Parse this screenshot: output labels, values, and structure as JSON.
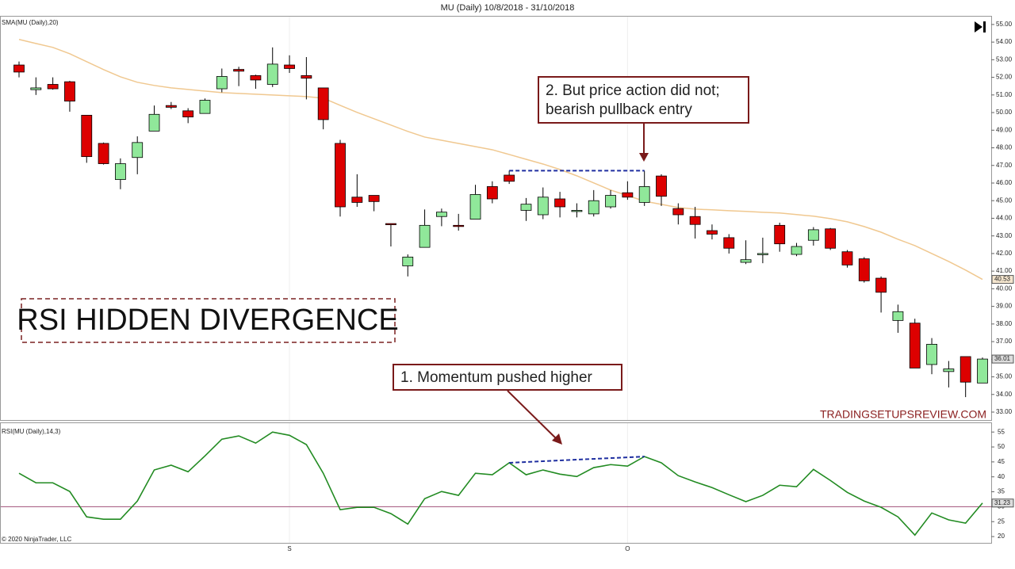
{
  "chart_data": [
    {
      "type": "candlestick",
      "title": "MU (Daily)  10/8/2018 - 31/10/2018",
      "open": [
        52.7,
        51.3,
        51.6,
        51.75,
        49.85,
        48.25,
        46.2,
        47.45,
        48.95,
        50.4,
        50.1,
        49.95,
        51.35,
        52.45,
        52.1,
        51.6,
        52.7,
        52.1,
        51.4,
        48.25,
        45.2,
        45.3,
        43.7,
        41.3,
        42.35,
        44.1,
        43.6,
        43.95,
        45.8,
        46.45,
        44.45,
        44.2,
        45.1,
        44.4,
        44.25,
        44.65,
        45.45,
        44.9,
        46.4,
        44.55,
        44.1,
        43.3,
        42.9,
        41.5,
        41.95,
        43.6,
        41.95,
        42.75,
        43.4,
        42.1,
        41.7,
        40.6,
        38.2,
        38.05,
        35.7,
        35.3,
        36.15,
        34.65
      ],
      "high": [
        52.9,
        52.0,
        52.0,
        51.8,
        49.85,
        48.3,
        47.4,
        48.65,
        50.4,
        50.6,
        50.25,
        50.8,
        52.5,
        52.6,
        52.15,
        53.7,
        53.25,
        53.15,
        51.4,
        48.45,
        46.5,
        45.3,
        43.7,
        41.95,
        44.5,
        44.55,
        44.25,
        45.9,
        46.1,
        46.7,
        45.15,
        45.75,
        45.5,
        44.85,
        45.6,
        45.6,
        46.1,
        46.7,
        46.5,
        44.85,
        44.65,
        43.65,
        43.1,
        42.75,
        42.9,
        43.75,
        42.6,
        43.5,
        43.45,
        42.2,
        41.8,
        40.7,
        39.1,
        38.3,
        37.2,
        35.9,
        36.15,
        36.1
      ],
      "low": [
        52.0,
        51.0,
        51.3,
        50.05,
        47.15,
        47.05,
        45.65,
        46.5,
        48.95,
        50.2,
        49.4,
        49.95,
        51.15,
        51.5,
        51.35,
        51.45,
        52.25,
        50.75,
        49.05,
        44.1,
        44.65,
        44.4,
        42.4,
        40.7,
        42.35,
        43.55,
        43.3,
        43.95,
        44.85,
        45.95,
        43.85,
        43.95,
        44.05,
        44.05,
        44.1,
        44.55,
        45.05,
        44.7,
        44.7,
        43.65,
        42.85,
        42.8,
        42.0,
        41.4,
        41.45,
        42.1,
        41.85,
        42.45,
        42.2,
        41.2,
        40.35,
        38.65,
        37.5,
        35.5,
        35.15,
        34.4,
        33.85,
        34.65
      ],
      "close": [
        52.3,
        51.4,
        51.35,
        50.65,
        47.5,
        47.1,
        47.1,
        48.3,
        49.9,
        50.3,
        49.75,
        50.7,
        52.05,
        52.35,
        51.85,
        52.75,
        52.5,
        51.95,
        49.6,
        44.65,
        44.9,
        44.95,
        43.65,
        41.8,
        43.6,
        44.35,
        43.55,
        45.35,
        45.1,
        46.1,
        44.8,
        45.2,
        44.65,
        44.45,
        45.0,
        45.3,
        45.2,
        45.8,
        45.25,
        44.2,
        43.65,
        43.1,
        42.3,
        41.65,
        42.0,
        42.55,
        42.4,
        43.35,
        42.3,
        41.35,
        40.45,
        39.8,
        38.7,
        35.5,
        36.85,
        35.45,
        34.7,
        36.01
      ],
      "up_color": "#90e89a",
      "down_color": "#dd0000",
      "series": [
        {
          "name": "SMA(MU (Daily),20)",
          "color": "#f0c890",
          "values": [
            54.15,
            53.92,
            53.7,
            53.34,
            52.89,
            52.44,
            52.03,
            51.72,
            51.54,
            51.4,
            51.31,
            51.22,
            51.13,
            51.09,
            51.04,
            51.0,
            50.95,
            50.91,
            50.82,
            50.41,
            50.01,
            49.65,
            49.29,
            48.93,
            48.61,
            48.43,
            48.25,
            48.07,
            47.89,
            47.62,
            47.35,
            47.08,
            46.77,
            46.41,
            46.01,
            45.6,
            45.29,
            44.97,
            44.79,
            44.61,
            44.52,
            44.48,
            44.43,
            44.39,
            44.34,
            44.3,
            44.21,
            44.12,
            43.98,
            43.8,
            43.53,
            43.21,
            42.81,
            42.45,
            42.0,
            41.55,
            41.06,
            40.53
          ]
        }
      ],
      "ylim": [
        32.55,
        55.49
      ],
      "yticks": [
        {
          "value": 33,
          "label": "33.00"
        },
        {
          "value": 34,
          "label": "34.00"
        },
        {
          "value": 35,
          "label": "35.00"
        },
        {
          "value": 36,
          "label": "36.00"
        },
        {
          "value": 37,
          "label": "37.00"
        },
        {
          "value": 38,
          "label": "38.00"
        },
        {
          "value": 39,
          "label": "39.00"
        },
        {
          "value": 40,
          "label": "40.00"
        },
        {
          "value": 41,
          "label": "41.00"
        },
        {
          "value": 42,
          "label": "42.00"
        },
        {
          "value": 43,
          "label": "43.00"
        },
        {
          "value": 44,
          "label": "44.00"
        },
        {
          "value": 45,
          "label": "45.00"
        },
        {
          "value": 46,
          "label": "46.00"
        },
        {
          "value": 47,
          "label": "47.00"
        },
        {
          "value": 48,
          "label": "48.00"
        },
        {
          "value": 49,
          "label": "49.00"
        },
        {
          "value": 50,
          "label": "50.00"
        },
        {
          "value": 51,
          "label": "51.00"
        },
        {
          "value": 52,
          "label": "52.00"
        },
        {
          "value": 53,
          "label": "53.00"
        },
        {
          "value": 54,
          "label": "54.00"
        },
        {
          "value": 55,
          "label": "55.00"
        }
      ],
      "divergence": {
        "from": 29,
        "to": 37,
        "color": "#1f2fa0"
      },
      "headline": "RSI HIDDEN DIVERGENCE",
      "note": [
        "2. But price action did not;",
        "bearish pullback entry"
      ],
      "watermark": "TRADINGSETUPSREVIEW.COM"
    },
    {
      "type": "line",
      "categories": [
        null,
        null,
        null,
        null,
        null,
        null,
        null,
        null,
        null,
        null,
        null,
        null,
        null,
        null,
        null,
        null,
        "S",
        null,
        null,
        null,
        null,
        null,
        null,
        null,
        null,
        null,
        null,
        null,
        null,
        null,
        null,
        null,
        null,
        null,
        null,
        null,
        "O",
        null,
        null,
        null,
        null,
        null,
        null,
        null,
        null,
        null,
        null,
        null,
        null,
        null,
        null,
        null,
        null,
        null,
        null,
        null,
        null,
        null
      ],
      "series": [
        {
          "name": "RSI(MU (Daily),14,3)",
          "color": "#228b22",
          "values": [
            41.2,
            38.0,
            38.0,
            35.1,
            26.6,
            25.8,
            25.8,
            31.9,
            42.3,
            43.9,
            41.7,
            47.0,
            52.6,
            53.7,
            51.3,
            55.0,
            53.9,
            50.8,
            41.2,
            29.0,
            29.8,
            29.8,
            27.7,
            24.2,
            32.7,
            35.1,
            33.8,
            41.2,
            40.7,
            44.7,
            40.7,
            42.3,
            40.9,
            40.1,
            43.1,
            44.1,
            43.6,
            46.8,
            44.7,
            40.4,
            38.3,
            36.4,
            34.0,
            31.7,
            33.8,
            37.2,
            36.7,
            42.5,
            38.8,
            34.8,
            31.9,
            29.8,
            26.6,
            20.5,
            27.9,
            25.6,
            24.5,
            31.23
          ]
        }
      ],
      "ylim": [
        17.9,
        57.7
      ],
      "yticks": [
        20,
        25,
        30,
        35,
        40,
        45,
        50,
        55
      ],
      "reference_line": 30,
      "reference_color": "#a0507a",
      "note": "1. Momentum pushed higher",
      "copyright": "© 2020 NinjaTrader, LLC"
    }
  ]
}
